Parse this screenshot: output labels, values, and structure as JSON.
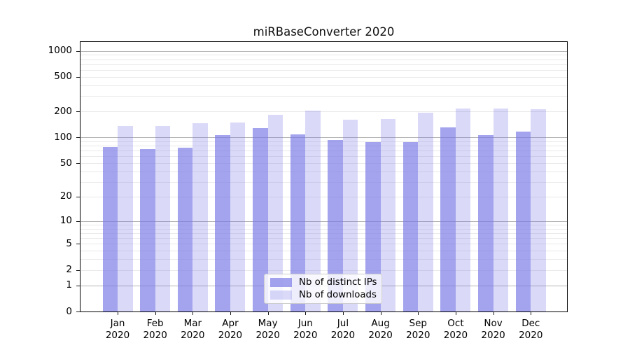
{
  "title": "miRBaseConverter 2020",
  "chart_data": {
    "type": "bar",
    "title": "miRBaseConverter 2020",
    "categories": [
      "Jan 2020",
      "Feb 2020",
      "Mar 2020",
      "Apr 2020",
      "May 2020",
      "Jun 2020",
      "Jul 2020",
      "Aug 2020",
      "Sep 2020",
      "Oct 2020",
      "Nov 2020",
      "Dec 2020"
    ],
    "x_tick_months": [
      "Jan",
      "Feb",
      "Mar",
      "Apr",
      "May",
      "Jun",
      "Jul",
      "Aug",
      "Sep",
      "Oct",
      "Nov",
      "Dec"
    ],
    "x_tick_year": "2020",
    "series": [
      {
        "name": "Nb of distinct IPs",
        "color": "rgba(118,118,230,0.67)",
        "values": [
          78,
          73,
          76,
          106,
          129,
          108,
          93,
          88,
          88,
          130,
          106,
          117
        ]
      },
      {
        "name": "Nb of downloads",
        "color": "rgba(118,118,230,0.27)",
        "values": [
          135,
          135,
          145,
          148,
          182,
          205,
          160,
          163,
          192,
          215,
          215,
          212
        ]
      }
    ],
    "yscale": "log1p",
    "ylim": [
      0,
      1265
    ],
    "xlabel": "",
    "ylabel": "",
    "y_tick_values": [
      0,
      1,
      2,
      5,
      10,
      20,
      50,
      100,
      200,
      500,
      1000
    ],
    "major_gridlines": [
      1,
      10,
      100,
      1000
    ],
    "minor_gridlines": [
      2,
      3,
      4,
      5,
      6,
      7,
      8,
      9,
      20,
      30,
      40,
      50,
      60,
      70,
      80,
      90,
      200,
      300,
      400,
      500,
      600,
      700,
      800,
      900
    ],
    "grid": true,
    "legend_position": "lower center",
    "colors": {
      "bar_base": "#7676e6",
      "major_grid": "#b3b3b3",
      "minor_grid": "#e9e9e9",
      "spine": "#000000",
      "text": "#000000",
      "legend_border": "#cccccc"
    }
  }
}
